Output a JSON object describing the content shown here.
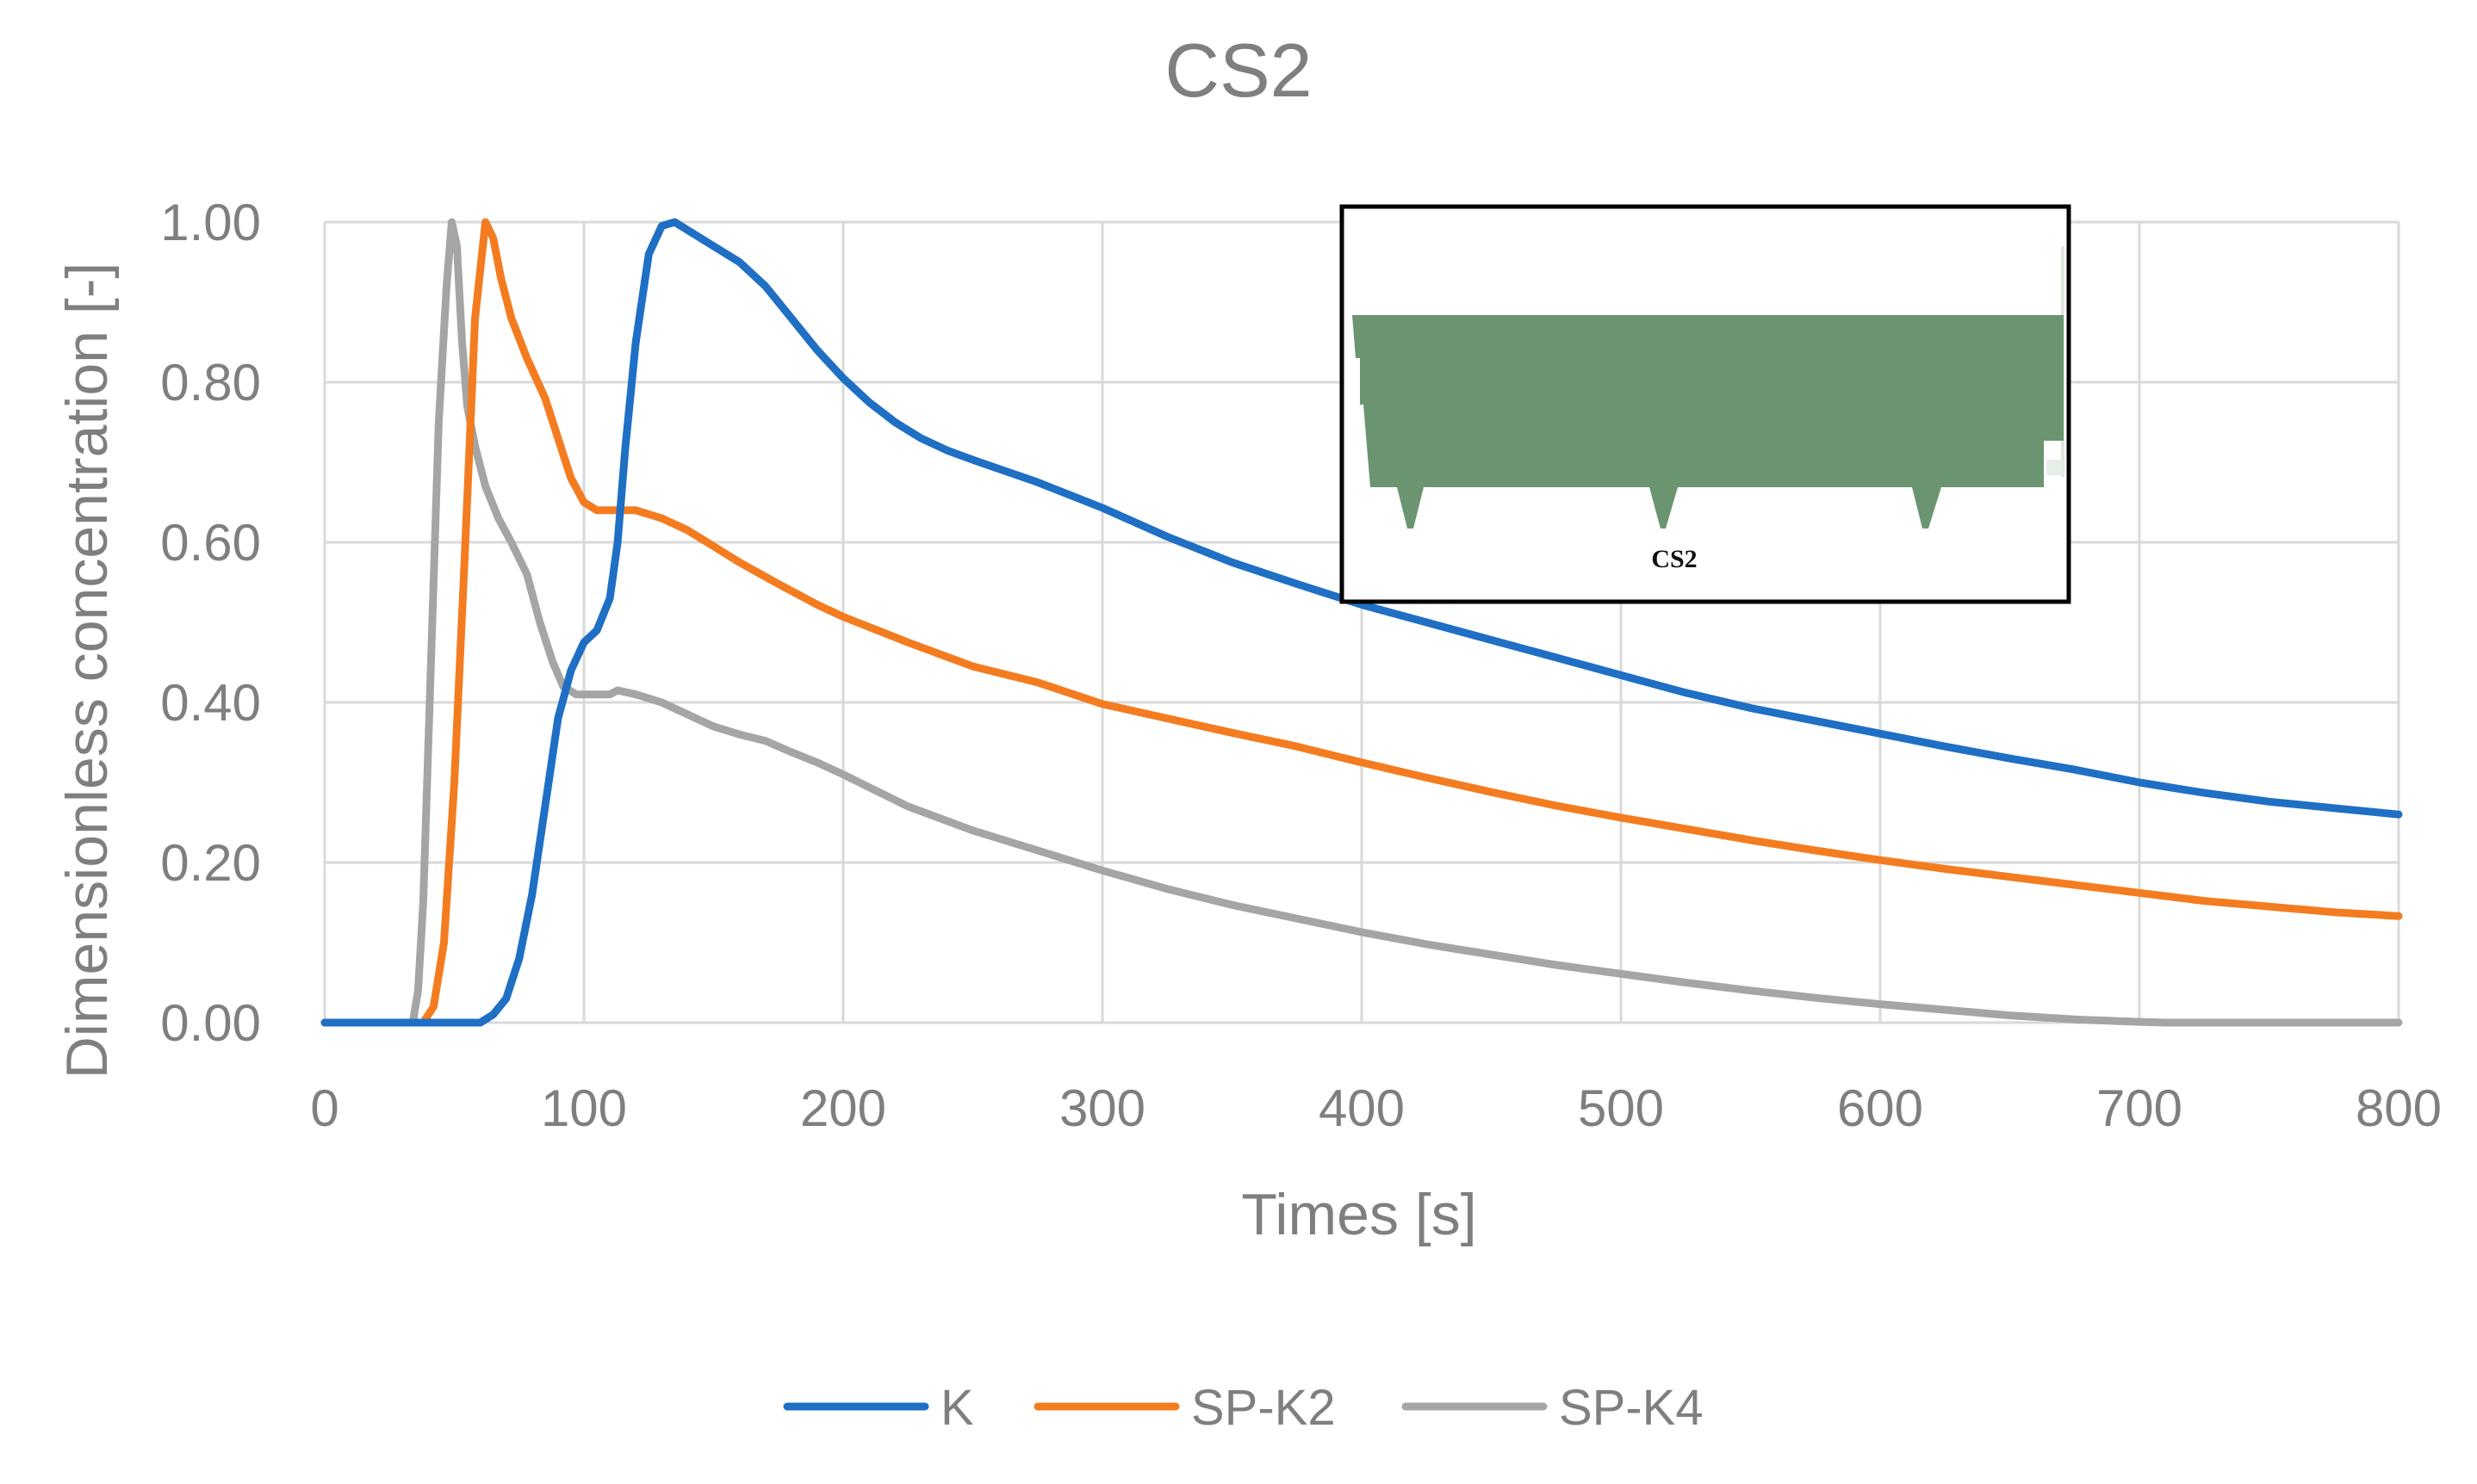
{
  "chart_data": {
    "type": "line",
    "title": "CS2",
    "xlabel": "Times [s]",
    "ylabel": "Dimensionless concentration [-]",
    "xlim": [
      0,
      800
    ],
    "ylim": [
      0,
      1.0
    ],
    "xticks": [
      0,
      100,
      200,
      300,
      400,
      500,
      600,
      700,
      800
    ],
    "yticks": [
      0.0,
      0.2,
      0.4,
      0.6,
      0.8,
      1.0
    ],
    "xtick_labels": [
      "0",
      "100",
      "200",
      "300",
      "400",
      "500",
      "600",
      "700",
      "800"
    ],
    "ytick_labels": [
      "0.00",
      "0.20",
      "0.40",
      "0.60",
      "0.80",
      "1.00"
    ],
    "grid": true,
    "legend_position": "bottom",
    "series": [
      {
        "name": "K",
        "color": "#1f6fc5",
        "points": [
          [
            0,
            0
          ],
          [
            60,
            0
          ],
          [
            65,
            0.01
          ],
          [
            70,
            0.03
          ],
          [
            75,
            0.08
          ],
          [
            80,
            0.16
          ],
          [
            85,
            0.27
          ],
          [
            90,
            0.38
          ],
          [
            95,
            0.44
          ],
          [
            100,
            0.475
          ],
          [
            105,
            0.49
          ],
          [
            110,
            0.53
          ],
          [
            113,
            0.6
          ],
          [
            116,
            0.72
          ],
          [
            120,
            0.85
          ],
          [
            125,
            0.96
          ],
          [
            130,
            0.995
          ],
          [
            135,
            1.0
          ],
          [
            140,
            0.99
          ],
          [
            150,
            0.97
          ],
          [
            160,
            0.95
          ],
          [
            170,
            0.92
          ],
          [
            180,
            0.88
          ],
          [
            190,
            0.84
          ],
          [
            200,
            0.805
          ],
          [
            210,
            0.775
          ],
          [
            220,
            0.75
          ],
          [
            230,
            0.73
          ],
          [
            240,
            0.715
          ],
          [
            250,
            0.703
          ],
          [
            275,
            0.675
          ],
          [
            300,
            0.643
          ],
          [
            325,
            0.607
          ],
          [
            350,
            0.575
          ],
          [
            375,
            0.548
          ],
          [
            400,
            0.522
          ],
          [
            425,
            0.5
          ],
          [
            450,
            0.478
          ],
          [
            475,
            0.456
          ],
          [
            500,
            0.434
          ],
          [
            525,
            0.412
          ],
          [
            550,
            0.393
          ],
          [
            575,
            0.377
          ],
          [
            600,
            0.361
          ],
          [
            625,
            0.345
          ],
          [
            650,
            0.33
          ],
          [
            675,
            0.316
          ],
          [
            700,
            0.3
          ],
          [
            725,
            0.287
          ],
          [
            750,
            0.276
          ],
          [
            775,
            0.268
          ],
          [
            800,
            0.26
          ]
        ]
      },
      {
        "name": "SP-K2",
        "color": "#f47c20",
        "points": [
          [
            0,
            0
          ],
          [
            38,
            0
          ],
          [
            42,
            0.02
          ],
          [
            46,
            0.1
          ],
          [
            50,
            0.3
          ],
          [
            54,
            0.58
          ],
          [
            58,
            0.88
          ],
          [
            62,
            1.0
          ],
          [
            65,
            0.98
          ],
          [
            68,
            0.93
          ],
          [
            72,
            0.88
          ],
          [
            78,
            0.83
          ],
          [
            85,
            0.78
          ],
          [
            90,
            0.73
          ],
          [
            95,
            0.68
          ],
          [
            100,
            0.65
          ],
          [
            105,
            0.64
          ],
          [
            110,
            0.64
          ],
          [
            120,
            0.64
          ],
          [
            130,
            0.63
          ],
          [
            140,
            0.615
          ],
          [
            150,
            0.595
          ],
          [
            160,
            0.575
          ],
          [
            175,
            0.548
          ],
          [
            190,
            0.522
          ],
          [
            200,
            0.507
          ],
          [
            225,
            0.475
          ],
          [
            250,
            0.445
          ],
          [
            275,
            0.425
          ],
          [
            300,
            0.398
          ],
          [
            325,
            0.38
          ],
          [
            350,
            0.362
          ],
          [
            375,
            0.345
          ],
          [
            400,
            0.325
          ],
          [
            425,
            0.306
          ],
          [
            450,
            0.288
          ],
          [
            475,
            0.271
          ],
          [
            500,
            0.256
          ],
          [
            525,
            0.242
          ],
          [
            550,
            0.228
          ],
          [
            575,
            0.215
          ],
          [
            600,
            0.203
          ],
          [
            625,
            0.192
          ],
          [
            650,
            0.182
          ],
          [
            675,
            0.172
          ],
          [
            700,
            0.162
          ],
          [
            725,
            0.152
          ],
          [
            750,
            0.145
          ],
          [
            775,
            0.138
          ],
          [
            800,
            0.133
          ]
        ]
      },
      {
        "name": "SP-K4",
        "color": "#a5a5a5",
        "points": [
          [
            0,
            0
          ],
          [
            34,
            0
          ],
          [
            36,
            0.04
          ],
          [
            38,
            0.15
          ],
          [
            41,
            0.45
          ],
          [
            44,
            0.75
          ],
          [
            47,
            0.92
          ],
          [
            49,
            1.0
          ],
          [
            51,
            0.97
          ],
          [
            53,
            0.85
          ],
          [
            55,
            0.77
          ],
          [
            58,
            0.72
          ],
          [
            62,
            0.67
          ],
          [
            67,
            0.63
          ],
          [
            72,
            0.6
          ],
          [
            78,
            0.56
          ],
          [
            83,
            0.5
          ],
          [
            88,
            0.45
          ],
          [
            92,
            0.42
          ],
          [
            97,
            0.41
          ],
          [
            102,
            0.41
          ],
          [
            110,
            0.41
          ],
          [
            113,
            0.415
          ],
          [
            120,
            0.41
          ],
          [
            130,
            0.4
          ],
          [
            140,
            0.385
          ],
          [
            150,
            0.37
          ],
          [
            160,
            0.36
          ],
          [
            170,
            0.352
          ],
          [
            180,
            0.338
          ],
          [
            190,
            0.325
          ],
          [
            200,
            0.31
          ],
          [
            225,
            0.27
          ],
          [
            250,
            0.24
          ],
          [
            275,
            0.215
          ],
          [
            300,
            0.19
          ],
          [
            325,
            0.167
          ],
          [
            350,
            0.147
          ],
          [
            375,
            0.13
          ],
          [
            400,
            0.113
          ],
          [
            425,
            0.098
          ],
          [
            450,
            0.085
          ],
          [
            475,
            0.072
          ],
          [
            500,
            0.061
          ],
          [
            525,
            0.05
          ],
          [
            550,
            0.04
          ],
          [
            575,
            0.031
          ],
          [
            600,
            0.023
          ],
          [
            625,
            0.016
          ],
          [
            650,
            0.009
          ],
          [
            675,
            0.004
          ],
          [
            700,
            0.001
          ],
          [
            710,
            0
          ],
          [
            800,
            0
          ]
        ]
      }
    ],
    "inset": {
      "label": "CS2"
    }
  }
}
